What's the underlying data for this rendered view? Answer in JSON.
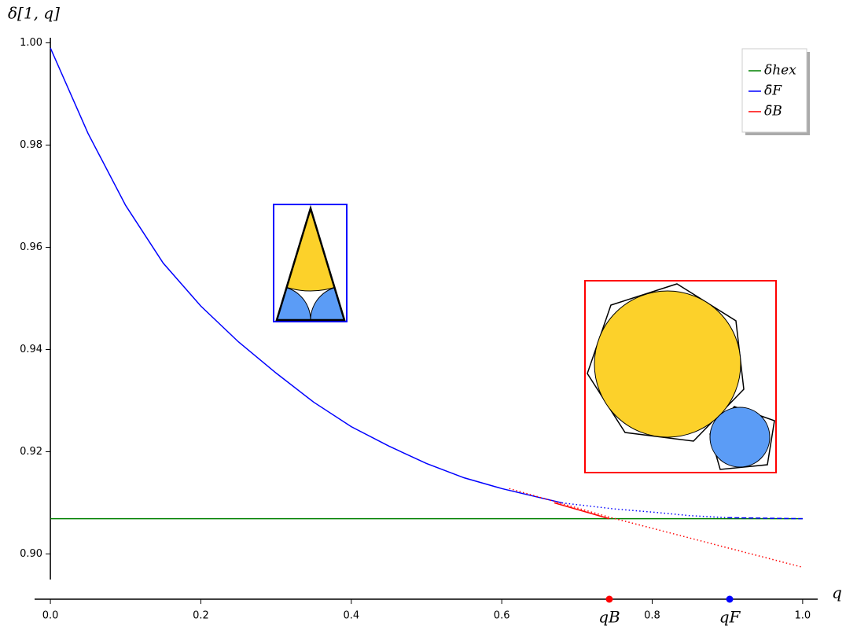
{
  "chart_data": {
    "type": "line",
    "ylabel": "δ[1, q]",
    "xlabel": "q",
    "xlim": [
      -0.021,
      1.02
    ],
    "ylim": [
      0.895,
      1.001
    ],
    "xticks": [
      {
        "value": 0.0,
        "label": "0.0"
      },
      0.2,
      0.4,
      0.6,
      0.8,
      {
        "value": 1.0,
        "label": "1.0"
      }
    ],
    "yticks": [
      {
        "value": 0.9,
        "label": "0.90"
      },
      0.92,
      0.94,
      0.96,
      0.98,
      {
        "value": 1.0,
        "label": "1.00"
      }
    ],
    "legend": "upper right",
    "series": [
      {
        "name": "δhex",
        "color": "#008000",
        "linestyle": "solid",
        "x": [
          0.0,
          1.0
        ],
        "values": [
          0.9069,
          0.9069
        ]
      },
      {
        "name": "δ̄F",
        "color": "#0000ff",
        "linestyle": "solid",
        "x": [
          0.0,
          0.05,
          0.1,
          0.15,
          0.2,
          0.25,
          0.3,
          0.35,
          0.4,
          0.45,
          0.5,
          0.55,
          0.6,
          0.68
        ],
        "values": [
          0.999,
          0.9823,
          0.9682,
          0.9569,
          0.9485,
          0.9415,
          0.9354,
          0.9297,
          0.9249,
          0.9211,
          0.9177,
          0.9149,
          0.9128,
          0.91
        ]
      },
      {
        "name": "δ̄B",
        "color": "#ff0000",
        "linestyle": "solid",
        "x": [
          0.67,
          0.743
        ],
        "values": [
          0.91,
          0.9069
        ]
      },
      {
        "color": "#0000ff",
        "linestyle": "dotted",
        "x": [
          0.68,
          0.75,
          0.8,
          0.85,
          0.9
        ],
        "values": [
          0.91,
          0.9088,
          0.9082,
          0.9075,
          0.9071
        ]
      },
      {
        "color": "#0000ff",
        "linestyle": "dashed",
        "x": [
          0.9,
          1.0
        ],
        "values": [
          0.9071,
          0.9069
        ]
      },
      {
        "color": "#ff0000",
        "linestyle": "dotted",
        "x": [
          0.61,
          0.743,
          1.0
        ],
        "values": [
          0.9128,
          0.9072,
          0.8974
        ]
      }
    ],
    "markers": [
      {
        "label": "qB",
        "x": 0.743,
        "color": "#ff0000"
      },
      {
        "label": "qF",
        "x": 0.903,
        "color": "#0000ff"
      }
    ]
  }
}
